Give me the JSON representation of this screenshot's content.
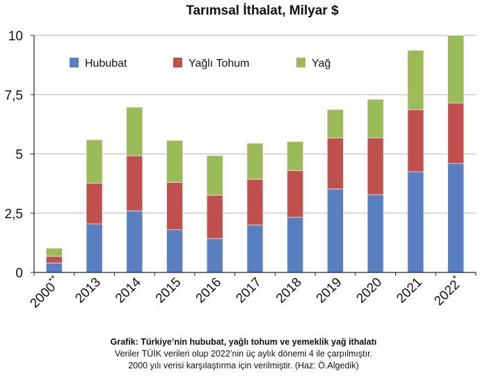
{
  "chart_data": {
    "type": "bar",
    "stacked": true,
    "title": "Tarımsal İthalat, Milyar $",
    "xlabel": "",
    "ylabel": "",
    "ylim": [
      0,
      10
    ],
    "yticks": [
      {
        "value": 0,
        "label": "0"
      },
      {
        "value": 2.5,
        "label": "2,5"
      },
      {
        "value": 5,
        "label": "5"
      },
      {
        "value": 7.5,
        "label": "7,5"
      },
      {
        "value": 10,
        "label": "10"
      }
    ],
    "grid": true,
    "legend_position": "top",
    "categories": [
      "2000**",
      "2013",
      "2014",
      "2015",
      "2016",
      "2017",
      "2018",
      "2019",
      "2020",
      "2021",
      "2022*"
    ],
    "series": [
      {
        "name": "Hububat",
        "color": "#5a7fc1",
        "values": [
          0.4,
          2.05,
          2.6,
          1.8,
          1.43,
          2.0,
          2.33,
          3.52,
          3.28,
          4.25,
          4.6
        ]
      },
      {
        "name": "Yağlı Tohum",
        "color": "#c0504d",
        "values": [
          0.28,
          1.72,
          2.32,
          2.0,
          1.83,
          1.93,
          1.97,
          2.15,
          2.4,
          2.62,
          2.55
        ]
      },
      {
        "name": "Yağ",
        "color": "#9bbb59",
        "values": [
          0.34,
          1.83,
          2.05,
          1.77,
          1.67,
          1.52,
          1.22,
          1.2,
          1.62,
          2.5,
          2.85
        ]
      }
    ]
  },
  "caption": {
    "title": "Grafik: Türkiye’nin hububat, yağlı tohum ve yemeklik yağ ithalatı",
    "line1": "Veriler TÜİK verileri olup 2022’nin üç aylık dönemi 4 ile çarpılmıştır.",
    "line2": "2000 yılı verisi karşılaştırma için verilmiştir. (Haz: Ö.Algedik)"
  },
  "colors": {
    "axis": "#222222",
    "grid": "#b3b3b3",
    "bar_edge": "#e6e6e6"
  }
}
